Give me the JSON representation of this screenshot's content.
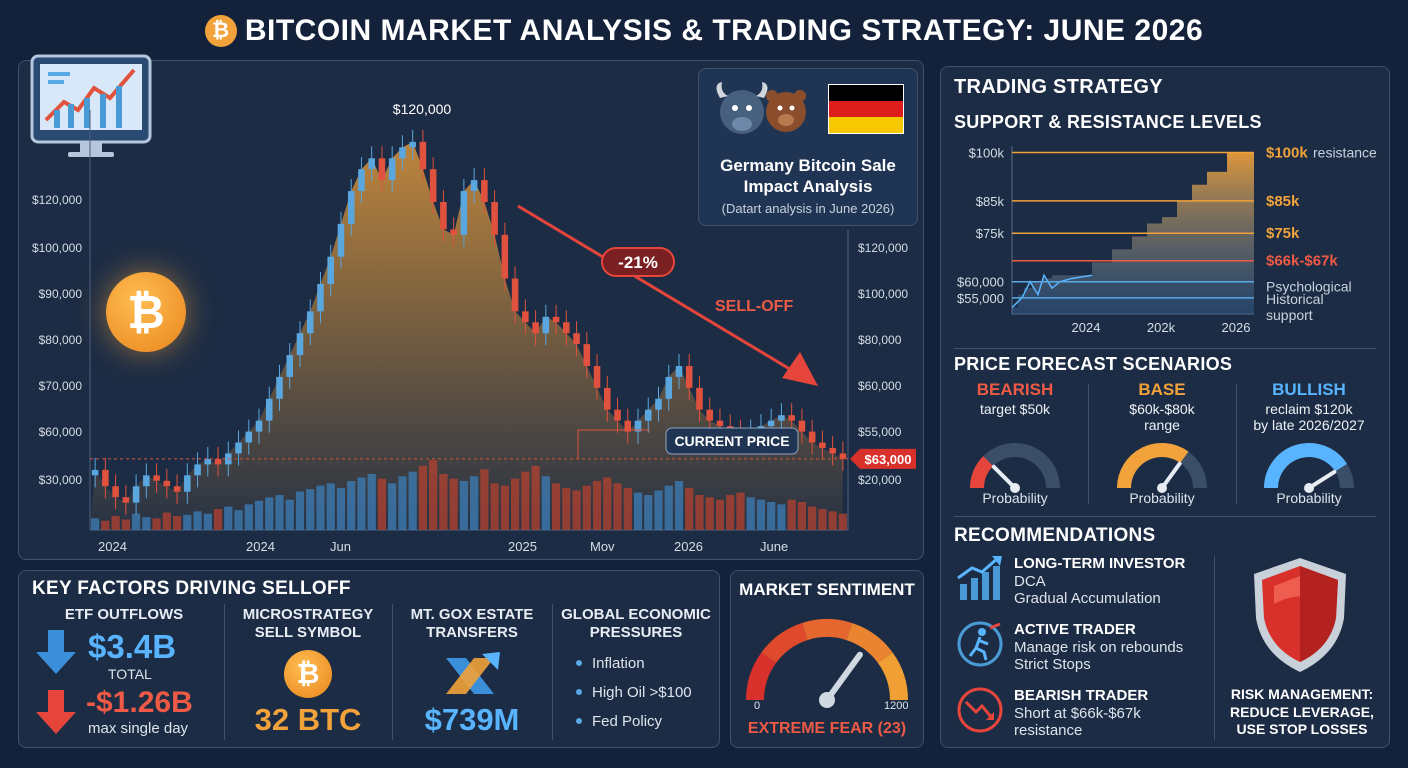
{
  "title": "BITCOIN MARKET ANALYSIS & TRADING STRATEGY: JUNE 2026",
  "icons": {
    "coin": "bitcoin-coin-icon",
    "monitor": "chart-monitor-icon",
    "bull_bear": "bull-bear-icon",
    "flag": "germany-flag-icon",
    "shield": "shield-icon"
  },
  "colors": {
    "bg": "#13223a",
    "panel": "#1c2c44",
    "up": "#4a9ad6",
    "down": "#e0523d",
    "accent": "#f2a23a",
    "bear": "#e5453a",
    "bull": "#59b4ff"
  },
  "chart_data": [
    {
      "type": "candlestick",
      "left_ticks": [
        "$120,000",
        "$100,000",
        "$90,000",
        "$80,000",
        "$70,000",
        "$60,000",
        "$30,000"
      ],
      "right_ticks": [
        "$120,000",
        "$100,000",
        "$80,000",
        "$60,000",
        "$55,000",
        "$20,000"
      ],
      "x_ticks": [
        "2024",
        "2024",
        "Jun",
        "2025",
        "Mov",
        "2026",
        "June"
      ],
      "peak_label": "$120,000",
      "drop_label": "-21%",
      "selloff_label": "SELL-OFF",
      "current_price": "$63,000",
      "current_label": "CURRENT PRICE",
      "closes": [
        61,
        58,
        56,
        55,
        58,
        60,
        59,
        58,
        57,
        60,
        62,
        63,
        62,
        64,
        66,
        68,
        70,
        74,
        78,
        82,
        86,
        90,
        95,
        100,
        106,
        112,
        116,
        118,
        114,
        118,
        120,
        121,
        116,
        110,
        105,
        104,
        112,
        114,
        110,
        104,
        96,
        90,
        88,
        86,
        89,
        88,
        86,
        84,
        80,
        76,
        72,
        70,
        68,
        70,
        72,
        74,
        78,
        80,
        76,
        72,
        70,
        69,
        68,
        67,
        68,
        69,
        70,
        71,
        70,
        68,
        66,
        65,
        64,
        63
      ],
      "volumes": [
        10,
        8,
        12,
        9,
        14,
        11,
        10,
        15,
        12,
        13,
        16,
        14,
        18,
        20,
        17,
        22,
        25,
        28,
        30,
        26,
        33,
        35,
        38,
        40,
        36,
        42,
        45,
        48,
        44,
        40,
        46,
        50,
        55,
        60,
        48,
        44,
        42,
        46,
        52,
        40,
        38,
        44,
        50,
        55,
        46,
        40,
        36,
        34,
        38,
        42,
        45,
        40,
        36,
        32,
        30,
        34,
        38,
        42,
        36,
        30,
        28,
        26,
        30,
        32,
        28,
        26,
        24,
        22,
        26,
        24,
        20,
        18,
        16,
        14
      ]
    },
    {
      "type": "step-area",
      "title": "SUPPORT & RESISTANCE LEVELS",
      "y_ticks": [
        "$100k",
        "$85k",
        "$75k",
        "$60,000",
        "$55,000"
      ],
      "x_ticks": [
        "2024",
        "202k",
        "2026"
      ],
      "levels": [
        {
          "label": "$100k",
          "suffix": "resistance",
          "value": 100,
          "color": "#f2a23a"
        },
        {
          "label": "$85k",
          "suffix": "",
          "value": 85,
          "color": "#f2a23a"
        },
        {
          "label": "$75k",
          "suffix": "",
          "value": 75,
          "color": "#f2a23a"
        },
        {
          "label": "$66k-$67k",
          "suffix": "",
          "value": 66.5,
          "color": "#ee5a45"
        },
        {
          "label": "",
          "suffix": "Psychological",
          "value": 60,
          "color": "#59a9e8"
        },
        {
          "label": "",
          "suffix": "Historical support",
          "value": 55,
          "color": "#59a9e8"
        }
      ]
    }
  ],
  "germany": {
    "title1": "Germany Bitcoin Sale",
    "title2": "Impact Analysis",
    "note": "(Datart analysis in June 2026)"
  },
  "key_factors": {
    "title": "KEY FACTORS DRIVING SELLOFF",
    "etf": {
      "title": "ETF OUTFLOWS",
      "total": "$3.4B",
      "total_label": "TOTAL",
      "max": "-$1.26B",
      "max_label": "max single day"
    },
    "micro": {
      "title1": "MICROSTRATEGY",
      "title2": "SELL SYMBOL",
      "value": "32 BTC"
    },
    "gox": {
      "title1": "MT. GOX ESTATE",
      "title2": "TRANSFERS",
      "value": "$739M"
    },
    "global": {
      "title1": "GLOBAL ECONOMIC",
      "title2": "PRESSURES",
      "items": [
        "Inflation",
        "High Oil >$100",
        "Fed Policy"
      ]
    }
  },
  "sentiment": {
    "title": "MARKET SENTIMENT",
    "min": "0",
    "max": "1200",
    "label": "EXTREME FEAR (23)",
    "value": 23
  },
  "strategy": {
    "title": "TRADING STRATEGY",
    "forecast_title": "PRICE FORECAST SCENARIOS",
    "scenarios": [
      {
        "name": "BEARISH",
        "line1": "target $50k",
        "line2": "",
        "prob_label": "Probability",
        "probability": 0.25,
        "color": "#e5453a"
      },
      {
        "name": "BASE",
        "line1": "$60k-$80k",
        "line2": "range",
        "prob_label": "Probability",
        "probability": 0.7,
        "color": "#f2a23a"
      },
      {
        "name": "BULLISH",
        "line1": "reclaim $120k",
        "line2": "by late 2026/2027",
        "prob_label": "Probability",
        "probability": 0.82,
        "color": "#59b4ff"
      }
    ],
    "rec_title": "RECOMMENDATIONS",
    "recs": [
      {
        "title": "LONG-TERM INVESTOR",
        "line1": "DCA",
        "line2": "Gradual Accumulation"
      },
      {
        "title": "ACTIVE TRADER",
        "line1": "Manage risk on rebounds",
        "line2": "Strict Stops"
      },
      {
        "title": "BEARISH TRADER",
        "line1": "Short at $66k-$67k",
        "line2": "resistance"
      }
    ],
    "risk1": "RISK MANAGEMENT:",
    "risk2": "REDUCE LEVERAGE,",
    "risk3": "USE STOP LOSSES"
  }
}
